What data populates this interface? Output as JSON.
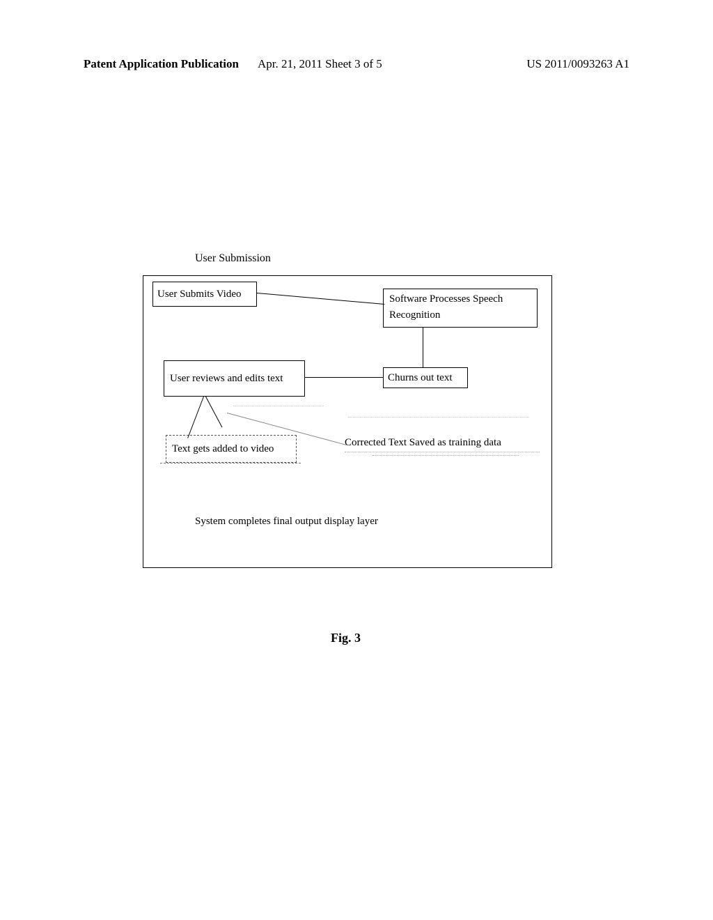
{
  "header": {
    "left": "Patent Application Publication",
    "center": "Apr. 21, 2011  Sheet 3 of 5",
    "right": "US 2011/0093263 A1"
  },
  "diagram": {
    "title": "User Submission",
    "boxes": {
      "b1": "User Submits Video",
      "b2a": "Software Processes  Speech",
      "b2b": "Recognition",
      "b3": "User reviews and edits text",
      "b4": "Churns out text",
      "b5": "Text gets added to video",
      "b6": "Corrected Text Saved as training data"
    },
    "bottom_text": "System completes final output display layer",
    "figure_label": "Fig. 3"
  }
}
